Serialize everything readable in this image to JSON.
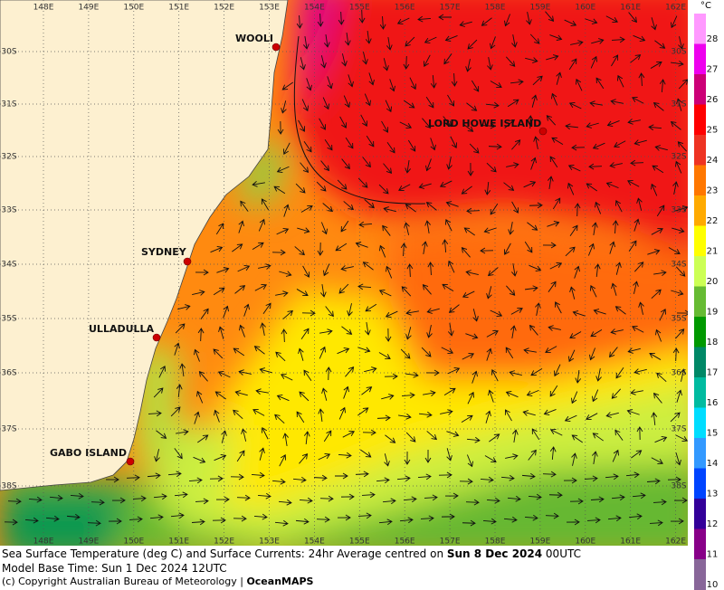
{
  "map": {
    "longitudes": [
      "148E",
      "149E",
      "150E",
      "151E",
      "152E",
      "153E",
      "154E",
      "155E",
      "156E",
      "157E",
      "158E",
      "159E",
      "160E",
      "161E",
      "162E"
    ],
    "latitudes": [
      "30S",
      "31S",
      "32S",
      "33S",
      "34S",
      "35S",
      "36S",
      "37S",
      "38S"
    ],
    "places": [
      "WOOLI",
      "LORD HOWE ISLAND",
      "SYDNEY",
      "ULLADULLA",
      "GABO ISLAND"
    ]
  },
  "colorbar": {
    "unit": "°C",
    "levels": [
      28,
      27,
      26,
      25,
      24,
      23,
      22,
      21,
      20,
      19,
      18,
      17,
      16,
      15,
      14,
      13,
      12,
      11,
      10
    ],
    "colors": [
      "#ff99ff",
      "#ee00ee",
      "#cc0077",
      "#ff0000",
      "#ee3322",
      "#ff7700",
      "#ffaa00",
      "#ffff00",
      "#ccff55",
      "#66bb33",
      "#009900",
      "#008866",
      "#00bba0",
      "#00ddff",
      "#3399ff",
      "#0044ff",
      "#330099",
      "#880088",
      "#886699"
    ]
  },
  "caption": {
    "line1": "Sea Surface Temperature (deg C) and Surface Currents: 24hr Average centred on ",
    "line1_date": "Sun 8 Dec 2024",
    "line1_time": " 00UTC",
    "line2": "Model Base Time: Sun 1 Dec 2024 12UTC",
    "line3": "(c) Copyright Australian Bureau of Meteorology | ",
    "line3_brand": "OceanMAPS"
  }
}
